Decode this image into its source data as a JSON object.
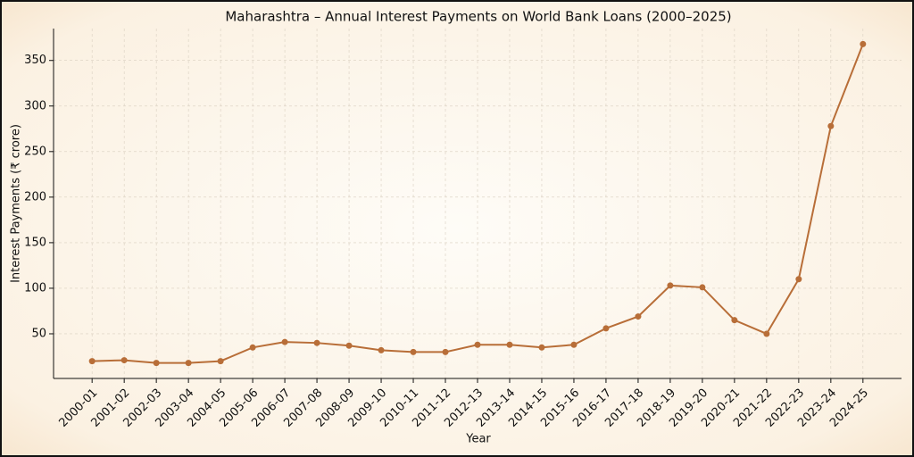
{
  "chart_data": {
    "type": "line",
    "title": "Maharashtra – Annual Interest Payments on World Bank Loans (2000–2025)",
    "x_label": "Year",
    "y_label": "Interest Payments (₹ crore)",
    "categories": [
      "2000-01",
      "2001-02",
      "2002-03",
      "2003-04",
      "2004-05",
      "2005-06",
      "2006-07",
      "2007-08",
      "2008-09",
      "2009-10",
      "2010-11",
      "2011-12",
      "2012-13",
      "2013-14",
      "2014-15",
      "2015-16",
      "2016-17",
      "2017-18",
      "2018-19",
      "2019-20",
      "2020-21",
      "2021-22",
      "2022-23",
      "2023-24",
      "2024-25"
    ],
    "values": [
      20,
      21,
      18,
      18,
      20,
      35,
      41,
      40,
      37,
      32,
      30,
      30,
      38,
      38,
      35,
      38,
      56,
      69,
      103,
      101,
      65,
      50,
      110,
      278,
      368
    ],
    "color": "#b86e38",
    "ylim": [
      1,
      385
    ],
    "yticks": [
      50,
      100,
      150,
      200,
      250,
      300,
      350
    ],
    "grid": true
  }
}
